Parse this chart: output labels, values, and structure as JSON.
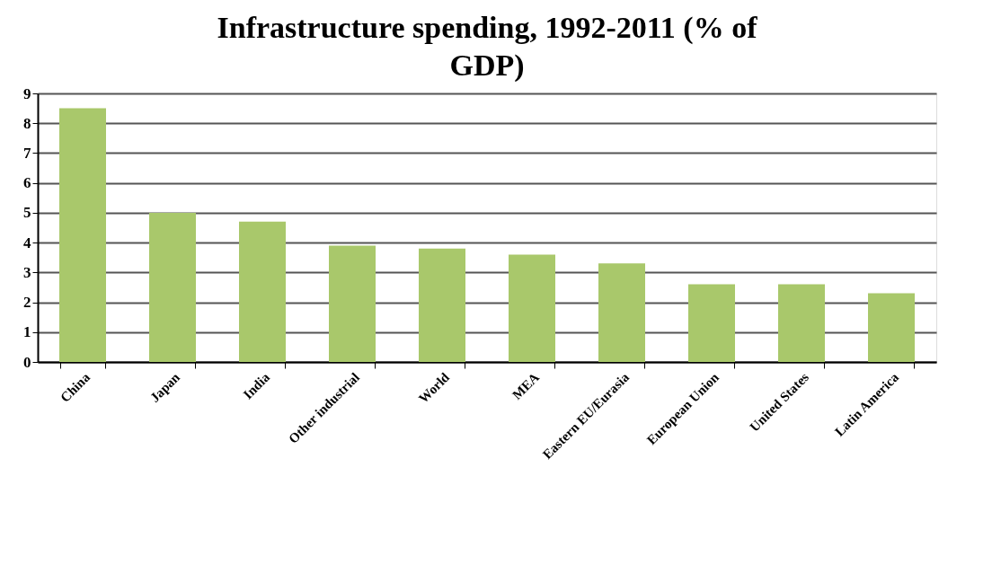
{
  "chart_data": {
    "type": "bar",
    "title": "Infrastructure spending, 1992-2011 (% of GDP)",
    "categories": [
      "China",
      "Japan",
      "India",
      "Other industrial",
      "World",
      "MEA",
      "Eastern EU/Eurasia",
      "European Union",
      "United States",
      "Latin America"
    ],
    "values": [
      8.5,
      5.0,
      4.7,
      3.9,
      3.8,
      3.6,
      3.3,
      2.6,
      2.6,
      2.3
    ],
    "color": "#a9c86b",
    "ylim": [
      0,
      9
    ],
    "yticks": [
      0,
      1,
      2,
      3,
      4,
      5,
      6,
      7,
      8,
      9
    ],
    "grid": "y"
  }
}
